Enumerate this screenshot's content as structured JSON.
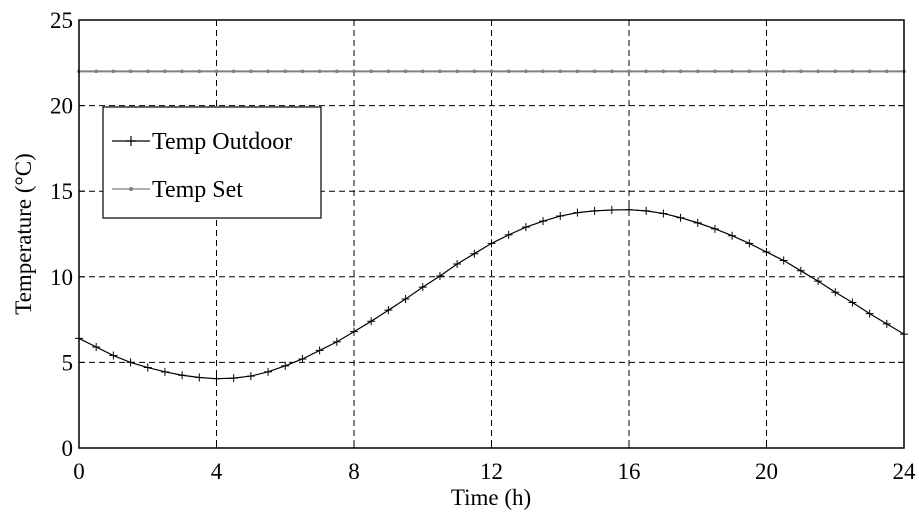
{
  "chart_data": {
    "type": "line",
    "title": "",
    "xlabel": "Time (h)",
    "ylabel": "Temperature (°C)",
    "xlim": [
      0,
      24
    ],
    "ylim": [
      0,
      25
    ],
    "xticks": [
      0,
      4,
      8,
      12,
      16,
      20,
      24
    ],
    "yticks": [
      0,
      5,
      10,
      15,
      20,
      25
    ],
    "grid": true,
    "legend_position": "upper-left",
    "x": [
      0,
      0.5,
      1,
      1.5,
      2,
      2.5,
      3,
      3.5,
      4,
      4.5,
      5,
      5.5,
      6,
      6.5,
      7,
      7.5,
      8,
      8.5,
      9,
      9.5,
      10,
      10.5,
      11,
      11.5,
      12,
      12.5,
      13,
      13.5,
      14,
      14.5,
      15,
      15.5,
      16,
      16.5,
      17,
      17.5,
      18,
      18.5,
      19,
      19.5,
      20,
      20.5,
      21,
      21.5,
      22,
      22.5,
      23,
      23.5,
      24
    ],
    "series": [
      {
        "name": "Temp Outdoor",
        "color": "#000000",
        "marker": "plus",
        "values": [
          6.4,
          5.9,
          5.4,
          5.0,
          4.7,
          4.45,
          4.25,
          4.12,
          4.05,
          4.08,
          4.2,
          4.45,
          4.8,
          5.2,
          5.7,
          6.2,
          6.8,
          7.4,
          8.05,
          8.7,
          9.4,
          10.05,
          10.75,
          11.35,
          11.95,
          12.45,
          12.9,
          13.25,
          13.55,
          13.75,
          13.85,
          13.9,
          13.92,
          13.85,
          13.7,
          13.45,
          13.15,
          12.8,
          12.4,
          11.95,
          11.45,
          10.95,
          10.35,
          9.75,
          9.1,
          8.5,
          7.85,
          7.25,
          6.65
        ]
      },
      {
        "name": "Temp Set",
        "color": "#808080",
        "marker": "dot",
        "values": [
          22,
          22,
          22,
          22,
          22,
          22,
          22,
          22,
          22,
          22,
          22,
          22,
          22,
          22,
          22,
          22,
          22,
          22,
          22,
          22,
          22,
          22,
          22,
          22,
          22,
          22,
          22,
          22,
          22,
          22,
          22,
          22,
          22,
          22,
          22,
          22,
          22,
          22,
          22,
          22,
          22,
          22,
          22,
          22,
          22,
          22,
          22,
          22,
          22
        ]
      }
    ]
  }
}
